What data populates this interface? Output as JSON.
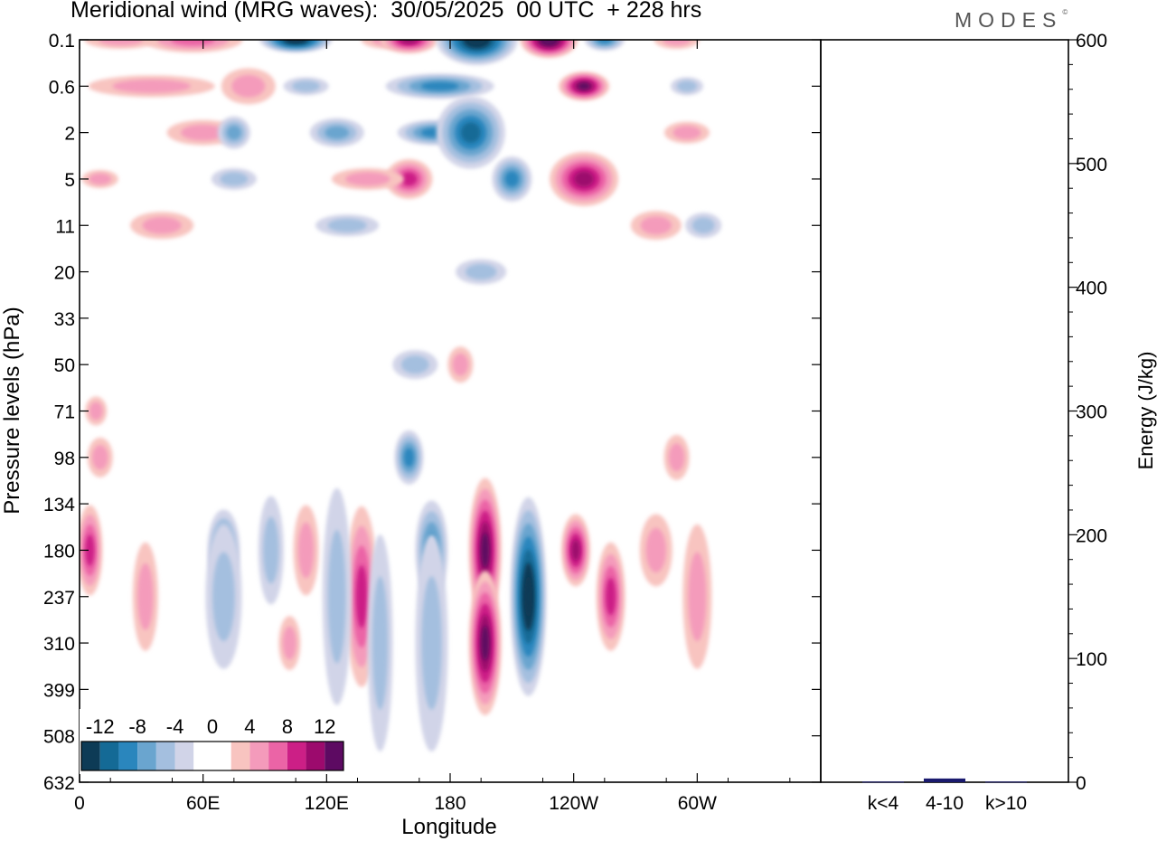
{
  "chart_data": [
    {
      "type": "heatmap",
      "title": "Meridional wind (MRG waves):  30/05/2025  00 UTC  + 228 hrs",
      "xlabel": "Longitude",
      "ylabel": "Pressure levels (hPa)",
      "xticks": [
        "0",
        "60E",
        "120E",
        "180",
        "120W",
        "60W"
      ],
      "yticks": [
        "0.1",
        "0.6",
        "2",
        "5",
        "11",
        "20",
        "33",
        "50",
        "71",
        "98",
        "134",
        "180",
        "237",
        "310",
        "399",
        "508",
        "632"
      ],
      "colorbar": {
        "labels": [
          "-12",
          "-8",
          "-4",
          "0",
          "4",
          "8",
          "12"
        ],
        "levels": [
          -14,
          -12,
          -10,
          -8,
          -6,
          -4,
          -2,
          0,
          2,
          4,
          6,
          8,
          10,
          12,
          14
        ],
        "colors": [
          "#0d3b56",
          "#146a96",
          "#2a86bd",
          "#6aa5cf",
          "#a4bfdf",
          "#d1d4e8",
          "#ffffff",
          "#ffffff",
          "#f8c4c0",
          "#f49bbb",
          "#eb64a6",
          "#cc1f86",
          "#9c0a6d",
          "#5d0a62"
        ]
      },
      "features": [
        {
          "lon": 55,
          "level": "0.1",
          "value": 6
        },
        {
          "lon": 105,
          "level": "0.1",
          "value": -14
        },
        {
          "lon": 160,
          "level": "0.1",
          "value": 10
        },
        {
          "lon": 193,
          "level": "0.1",
          "value": -14
        },
        {
          "lon": 228,
          "level": "0.1",
          "value": 14
        },
        {
          "lon": 255,
          "level": "0.1",
          "value": -9
        },
        {
          "lon": 245,
          "level": "0.6",
          "value": 12
        },
        {
          "lon": 82,
          "level": "0.6",
          "value": 4
        },
        {
          "lon": 245,
          "level": "5",
          "value": 10
        },
        {
          "lon": 190,
          "level": "2",
          "value": -10
        },
        {
          "lon": 160,
          "level": "5",
          "value": 8
        },
        {
          "lon": 75,
          "level": "2",
          "value": -6
        },
        {
          "lon": 5,
          "level": "180",
          "value": 8
        },
        {
          "lon": 70,
          "level": "180",
          "value": -8
        },
        {
          "lon": 93,
          "level": "180",
          "value": -4
        },
        {
          "lon": 137,
          "level": "237",
          "value": 8
        },
        {
          "lon": 160,
          "level": "98",
          "value": -8
        },
        {
          "lon": 171,
          "level": "180",
          "value": -8
        },
        {
          "lon": 197,
          "level": "180",
          "value": 12
        },
        {
          "lon": 197,
          "level": "310",
          "value": 12
        },
        {
          "lon": 218,
          "level": "237",
          "value": -14
        },
        {
          "lon": 241,
          "level": "180",
          "value": 10
        },
        {
          "lon": 258,
          "level": "237",
          "value": 8
        },
        {
          "lon": 10,
          "level": "98",
          "value": 4
        }
      ]
    },
    {
      "type": "bar",
      "categories": [
        "k<4",
        "4-10",
        "k>10"
      ],
      "values": [
        0.5,
        3,
        0.5
      ],
      "ylabel": "Energy (J/kg)",
      "ylim": [
        0,
        600
      ],
      "yticks": [
        "0",
        "100",
        "200",
        "300",
        "400",
        "500",
        "600"
      ],
      "color": "#1a1a6e"
    }
  ],
  "brand": {
    "name": "MODES",
    "mark": "©"
  }
}
